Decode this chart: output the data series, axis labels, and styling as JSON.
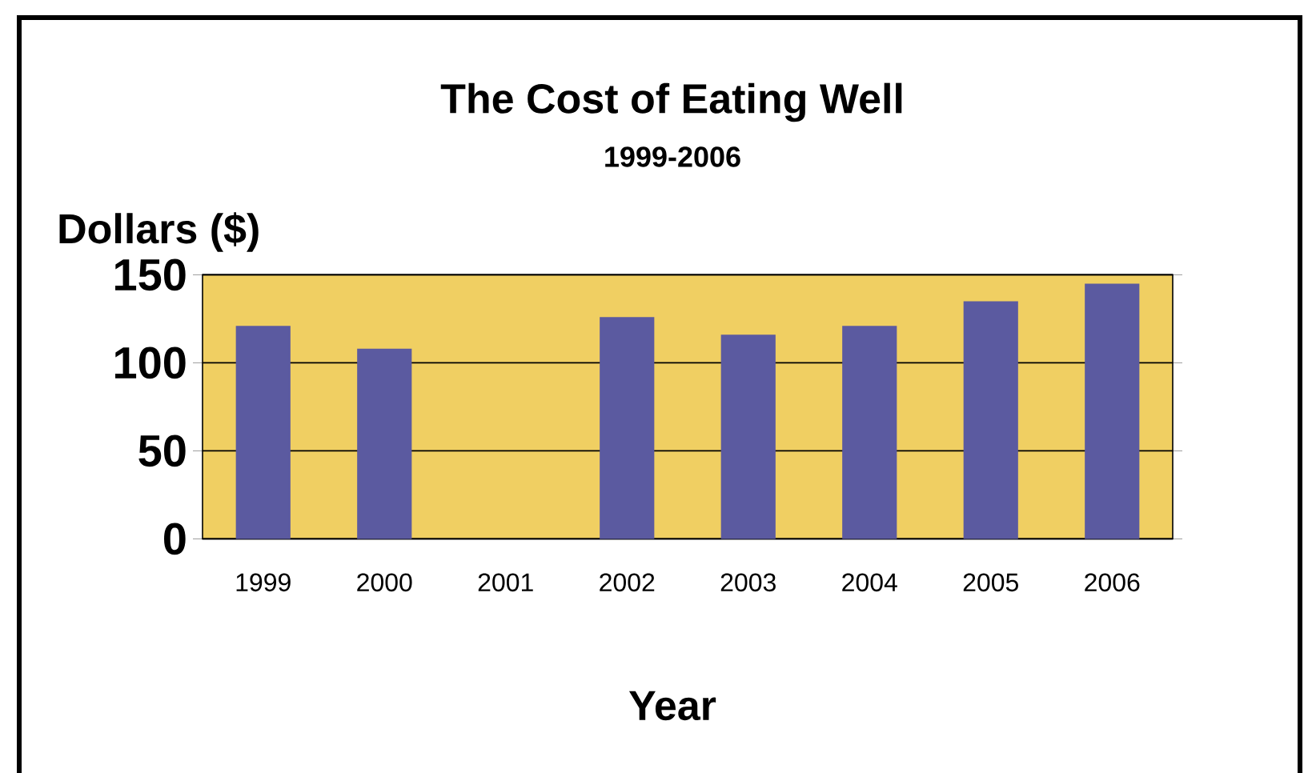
{
  "chart_data": {
    "type": "bar",
    "title": "The Cost of Eating Well",
    "subtitle": "1999-2006",
    "xlabel": "Year",
    "ylabel": "Dollars ($)",
    "categories": [
      "1999",
      "2000",
      "2001",
      "2002",
      "2003",
      "2004",
      "2005",
      "2006"
    ],
    "values": [
      121,
      108,
      null,
      126,
      116,
      121,
      135,
      145
    ],
    "color": "#5b5aa0",
    "ylim": [
      0,
      150
    ],
    "yticks": [
      0,
      50,
      100,
      150
    ],
    "grid": "y"
  }
}
